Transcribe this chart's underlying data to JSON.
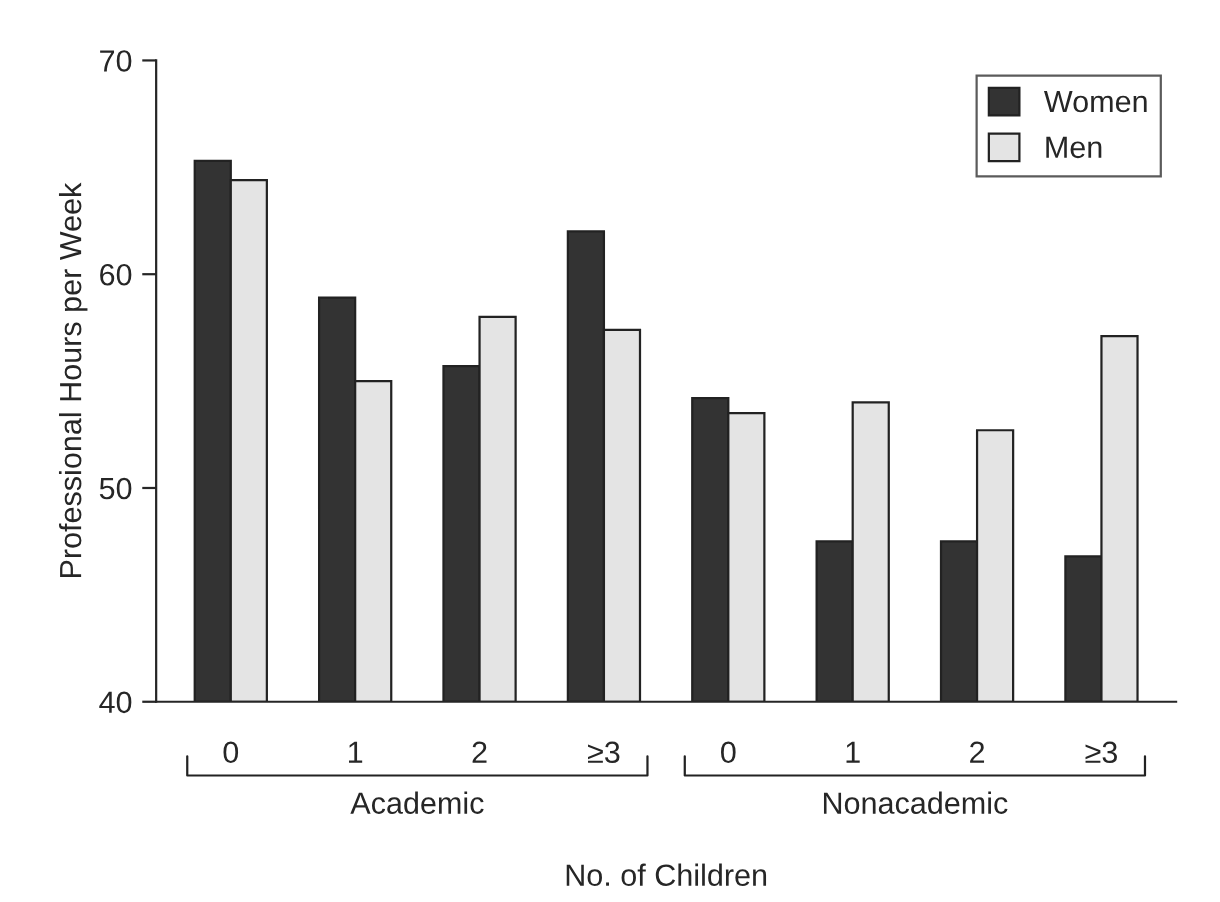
{
  "chart_data": {
    "type": "bar",
    "xlabel": "No. of Children",
    "ylabel": "Professional Hours per Week",
    "categories": [
      "0",
      "1",
      "2",
      "≥3",
      "0",
      "1",
      "2",
      "≥3"
    ],
    "series": [
      {
        "name": "Women",
        "color": "#333333",
        "values": [
          65.3,
          58.9,
          55.7,
          62.0,
          54.2,
          47.5,
          47.5,
          46.8
        ]
      },
      {
        "name": "Men",
        "color": "#e4e4e4",
        "values": [
          64.4,
          55.0,
          58.0,
          57.4,
          53.5,
          54.0,
          52.7,
          57.1
        ]
      }
    ],
    "annotations": [
      "Academic",
      "Nonacademic"
    ],
    "ylim": [
      40,
      70
    ],
    "yticks": [
      40,
      50,
      60,
      70
    ],
    "grid": false,
    "legend": "top right"
  }
}
